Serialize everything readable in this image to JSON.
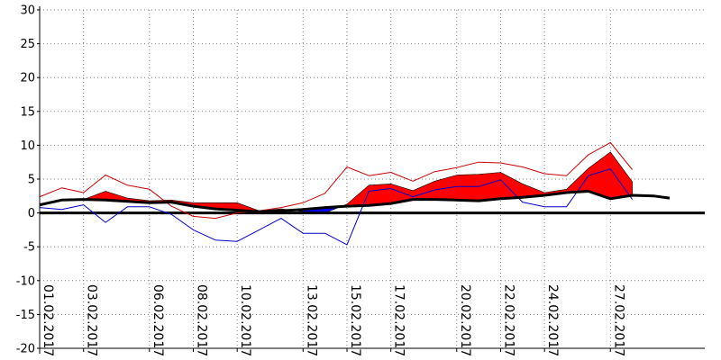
{
  "chart_data": {
    "type": "area",
    "title": "",
    "xlabel": "",
    "ylabel": "",
    "ylim": [
      -20,
      30
    ],
    "xlim": [
      0,
      30.3
    ],
    "grid": true,
    "y_ticks": [
      30,
      25,
      20,
      15,
      10,
      5,
      0,
      -5,
      -10,
      -15,
      -20
    ],
    "x_ticks": [
      {
        "label": "01.02.2017",
        "x": 0
      },
      {
        "label": "03.02.2017",
        "x": 2
      },
      {
        "label": "06.02.2017",
        "x": 5
      },
      {
        "label": "08.02.2017",
        "x": 7
      },
      {
        "label": "10.02.2017",
        "x": 9
      },
      {
        "label": "13.02.2017",
        "x": 12
      },
      {
        "label": "15.02.2017",
        "x": 14
      },
      {
        "label": "17.02.2017",
        "x": 16
      },
      {
        "label": "20.02.2017",
        "x": 19
      },
      {
        "label": "22.02.2017",
        "x": 21
      },
      {
        "label": "24.02.2017",
        "x": 23
      },
      {
        "label": "27.02.2017",
        "x": 26
      }
    ],
    "colors": {
      "above_fill": "#ff0000",
      "below_fill": "#0000ff",
      "max_line": "#cc0000",
      "min_line": "#0000cc",
      "norm_line": "#000000",
      "zero_line": "#000000",
      "grid": "#808080"
    },
    "series": [
      {
        "key": "norm",
        "x": [
          0,
          1,
          2,
          3,
          4,
          5,
          6,
          7,
          8,
          9,
          10,
          11,
          12,
          13,
          14,
          15,
          16,
          17,
          18,
          19,
          20,
          21,
          22,
          23,
          24,
          25,
          26,
          27,
          28,
          28.7
        ],
        "values": [
          1.2,
          1.9,
          2.0,
          1.9,
          1.7,
          1.5,
          1.6,
          1.0,
          0.6,
          0.4,
          0.2,
          0.3,
          0.5,
          0.8,
          1.0,
          1.1,
          1.4,
          2.0,
          2.0,
          1.9,
          1.8,
          2.1,
          2.3,
          2.6,
          3.0,
          3.2,
          2.1,
          2.6,
          2.5,
          2.2
        ]
      },
      {
        "key": "mean",
        "x": [
          0,
          1,
          2,
          3,
          4,
          5,
          6,
          7,
          8,
          9,
          10,
          11,
          12,
          13,
          14,
          15,
          16,
          17,
          18,
          19,
          20,
          21,
          22,
          23,
          24,
          25,
          26,
          27
        ],
        "values": [
          1.0,
          2.0,
          2.0,
          3.2,
          2.2,
          1.8,
          1.9,
          1.5,
          1.5,
          1.5,
          0.3,
          0.6,
          0.2,
          0.0,
          1.3,
          4.1,
          4.3,
          3.3,
          4.7,
          5.6,
          5.7,
          6.0,
          4.3,
          3.0,
          3.5,
          6.6,
          9.0,
          4.6
        ]
      },
      {
        "key": "max",
        "x": [
          0,
          1,
          2,
          3,
          4,
          5,
          6,
          7,
          8,
          9,
          10,
          11,
          12,
          13,
          14,
          15,
          16,
          17,
          18,
          19,
          20,
          21,
          22,
          23,
          24,
          25,
          26,
          27
        ],
        "values": [
          2.4,
          3.7,
          3.0,
          5.6,
          4.1,
          3.5,
          1.0,
          -0.5,
          -0.8,
          0.0,
          0.3,
          0.8,
          1.5,
          2.9,
          6.8,
          5.5,
          6.0,
          4.7,
          6.1,
          6.7,
          7.5,
          7.4,
          6.8,
          5.8,
          5.5,
          8.6,
          10.4,
          6.4
        ]
      },
      {
        "key": "min",
        "x": [
          0,
          1,
          2,
          3,
          4,
          5,
          6,
          7,
          8,
          9,
          10,
          11,
          12,
          13,
          14,
          15,
          16,
          17,
          18,
          19,
          20,
          21,
          22,
          23,
          24,
          25,
          26,
          27
        ],
        "values": [
          0.8,
          0.5,
          1.2,
          -1.4,
          0.9,
          0.9,
          -0.2,
          -2.5,
          -4.0,
          -4.2,
          -2.5,
          -0.8,
          -3.0,
          -3.0,
          -4.7,
          3.2,
          3.6,
          2.4,
          3.4,
          3.9,
          3.9,
          4.9,
          1.6,
          0.9,
          0.9,
          5.5,
          6.5,
          2.0
        ]
      }
    ]
  }
}
